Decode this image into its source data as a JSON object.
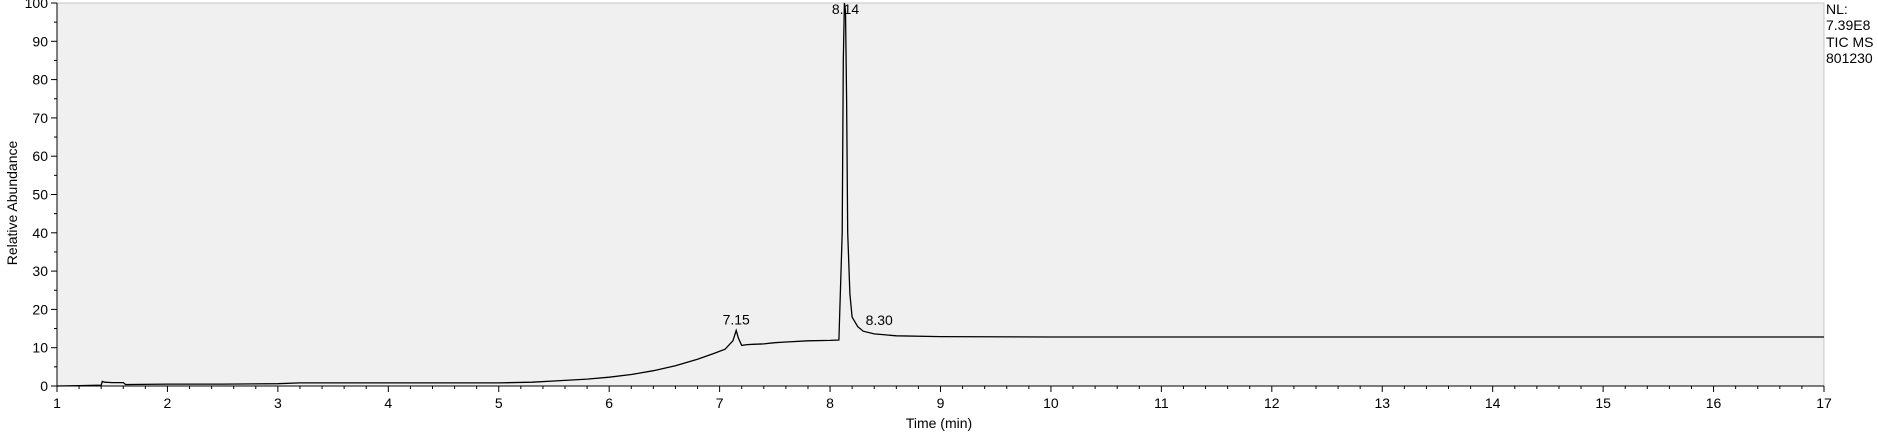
{
  "chart_data": {
    "type": "line",
    "title": "",
    "xlabel": "Time (min)",
    "ylabel": "Relative Abundance",
    "xlim": [
      1,
      17
    ],
    "ylim": [
      0,
      100
    ],
    "x_ticks": [
      "1",
      "2",
      "3",
      "4",
      "5",
      "6",
      "7",
      "8",
      "9",
      "10",
      "11",
      "12",
      "13",
      "14",
      "15",
      "16",
      "17"
    ],
    "y_ticks": [
      "0",
      "10",
      "20",
      "30",
      "40",
      "50",
      "60",
      "70",
      "80",
      "90",
      "100"
    ],
    "grid": false,
    "colors": {
      "plot_background": "#f0f0f0",
      "trace": "#000000",
      "frame": "#000000"
    },
    "series": [
      {
        "x": [
          1.0,
          1.2,
          1.4,
          1.41,
          1.43,
          1.5,
          1.6,
          1.62,
          2.0,
          2.5,
          3.0,
          3.2,
          3.5,
          4.0,
          4.5,
          5.0,
          5.3,
          5.5,
          5.8,
          6.0,
          6.2,
          6.4,
          6.6,
          6.8,
          6.95,
          7.05,
          7.12,
          7.15,
          7.17,
          7.2,
          7.25,
          7.3,
          7.4,
          7.5,
          7.6,
          7.8,
          8.0,
          8.08,
          8.11,
          8.12,
          8.13,
          8.14,
          8.15,
          8.16,
          8.18,
          8.2,
          8.25,
          8.3,
          8.4,
          8.6,
          9.0,
          10.0,
          11.0,
          12.0,
          13.0,
          14.0,
          15.0,
          16.0,
          17.0
        ],
        "y": [
          0.0,
          0.1,
          0.2,
          1.2,
          1.0,
          0.9,
          0.9,
          0.4,
          0.5,
          0.5,
          0.6,
          0.8,
          0.8,
          0.8,
          0.8,
          0.8,
          1.0,
          1.3,
          1.8,
          2.3,
          3.0,
          4.0,
          5.3,
          7.0,
          8.5,
          9.6,
          11.8,
          14.5,
          12.5,
          10.6,
          10.8,
          10.9,
          11.0,
          11.3,
          11.5,
          11.8,
          11.9,
          12.0,
          40.0,
          85.0,
          100.0,
          98.0,
          75.0,
          40.0,
          24.0,
          18.0,
          15.5,
          14.3,
          13.6,
          13.1,
          12.9,
          12.8,
          12.8,
          12.8,
          12.8,
          12.8,
          12.8,
          12.8,
          12.8
        ]
      }
    ],
    "peak_labels": [
      {
        "label": "7.15",
        "x": 7.15,
        "y": 14.5
      },
      {
        "label": "8.14",
        "x": 8.14,
        "y": 100
      },
      {
        "label": "8.30",
        "x": 8.3,
        "y": 14.3
      }
    ]
  },
  "info": {
    "line1": "NL:",
    "line2": "7.39E8",
    "line3": "TIC  MS",
    "line4": "801230"
  }
}
